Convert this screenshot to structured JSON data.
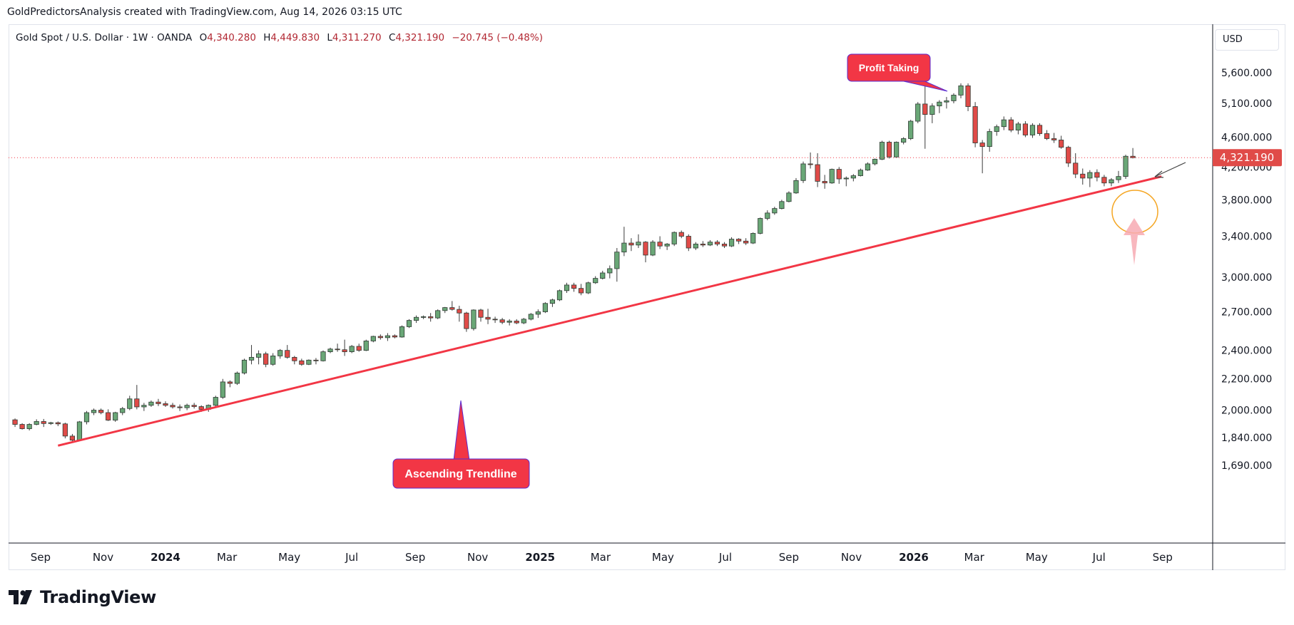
{
  "header": {
    "caption": "GoldPredictorsAnalysis created with TradingView.com, Aug 14, 2026 03:15 UTC"
  },
  "legend": {
    "symbol": "Gold Spot / U.S. Dollar · 1W · OANDA",
    "open_label": "O",
    "open": "4,340.280",
    "high_label": "H",
    "high": "4,449.830",
    "low_label": "L",
    "low": "4,311.270",
    "close_label": "C",
    "close": "4,321.190",
    "change": "−20.745 (−0.48%)"
  },
  "currency": "USD",
  "price_tag": "4,321.190",
  "colors": {
    "up": "#6aa777",
    "down": "#e04b48",
    "trend": "#f23645",
    "annotation": "#f23645",
    "circle": "#f5a623"
  },
  "annotations": {
    "profit_taking": "Profit Taking",
    "ascending_trendline": "Ascending Trendline"
  },
  "brand": {
    "name": "TradingView"
  },
  "chart_data": {
    "type": "candlestick",
    "y_scale": "log",
    "ylim": [
      1640,
      6300
    ],
    "y_ticks": [
      {
        "value": 1690,
        "label": "1,690.000"
      },
      {
        "value": 1840,
        "label": "1,840.000"
      },
      {
        "value": 2000,
        "label": "2,000.000"
      },
      {
        "value": 2200,
        "label": "2,200.000"
      },
      {
        "value": 2400,
        "label": "2,400.000"
      },
      {
        "value": 2700,
        "label": "2,700.000"
      },
      {
        "value": 3000,
        "label": "3,000.000"
      },
      {
        "value": 3400,
        "label": "3,400.000"
      },
      {
        "value": 3800,
        "label": "3,800.000"
      },
      {
        "value": 4200,
        "label": "4,200.000"
      },
      {
        "value": 4600,
        "label": "4,600.000"
      },
      {
        "value": 5100,
        "label": "5,100.000"
      },
      {
        "value": 5600,
        "label": "5,600.000"
      }
    ],
    "x_ticks": [
      {
        "date": "2023-09-01",
        "label": "Sep"
      },
      {
        "date": "2023-11-01",
        "label": "Nov"
      },
      {
        "date": "2024-01-01",
        "label": "2024",
        "bold": true
      },
      {
        "date": "2024-03-01",
        "label": "Mar"
      },
      {
        "date": "2024-05-01",
        "label": "May"
      },
      {
        "date": "2024-07-01",
        "label": "Jul"
      },
      {
        "date": "2024-09-01",
        "label": "Sep"
      },
      {
        "date": "2024-11-01",
        "label": "Nov"
      },
      {
        "date": "2025-01-01",
        "label": "2025",
        "bold": true
      },
      {
        "date": "2025-03-01",
        "label": "Mar"
      },
      {
        "date": "2025-05-01",
        "label": "May"
      },
      {
        "date": "2025-07-01",
        "label": "Jul"
      },
      {
        "date": "2025-09-01",
        "label": "Sep"
      },
      {
        "date": "2025-11-01",
        "label": "Nov"
      },
      {
        "date": "2026-01-01",
        "label": "2026",
        "bold": true
      },
      {
        "date": "2026-03-01",
        "label": "Mar"
      },
      {
        "date": "2026-05-01",
        "label": "May"
      },
      {
        "date": "2026-07-01",
        "label": "Jul"
      },
      {
        "date": "2026-09-01",
        "label": "Sep"
      }
    ],
    "first_week": "2023-08-07",
    "last_price": 4321.19,
    "trendline": {
      "start": {
        "date": "2023-09-18",
        "price": 1795
      },
      "end": {
        "date": "2026-08-31",
        "price": 4080
      }
    },
    "candles": [
      [
        1942,
        1950,
        1900,
        1915
      ],
      [
        1915,
        1922,
        1885,
        1890
      ],
      [
        1890,
        1922,
        1880,
        1915
      ],
      [
        1915,
        1945,
        1910,
        1932
      ],
      [
        1932,
        1947,
        1900,
        1920
      ],
      [
        1920,
        1930,
        1912,
        1925
      ],
      [
        1925,
        1932,
        1905,
        1918
      ],
      [
        1918,
        1925,
        1835,
        1848
      ],
      [
        1848,
        1860,
        1815,
        1825
      ],
      [
        1825,
        1935,
        1820,
        1930
      ],
      [
        1930,
        1995,
        1915,
        1985
      ],
      [
        1985,
        2010,
        1970,
        2000
      ],
      [
        2000,
        2010,
        1975,
        1985
      ],
      [
        1985,
        2005,
        1935,
        1940
      ],
      [
        1940,
        1990,
        1930,
        1985
      ],
      [
        1985,
        2020,
        1970,
        2010
      ],
      [
        2010,
        2090,
        2000,
        2070
      ],
      [
        2070,
        2160,
        2005,
        2020
      ],
      [
        2020,
        2045,
        1995,
        2030
      ],
      [
        2030,
        2060,
        2020,
        2050
      ],
      [
        2050,
        2070,
        2025,
        2040
      ],
      [
        2040,
        2055,
        2020,
        2030
      ],
      [
        2030,
        2045,
        2010,
        2020
      ],
      [
        2020,
        2035,
        1995,
        2015
      ],
      [
        2015,
        2040,
        2000,
        2030
      ],
      [
        2030,
        2045,
        2010,
        2022
      ],
      [
        2022,
        2030,
        1990,
        2005
      ],
      [
        2005,
        2035,
        1990,
        2030
      ],
      [
        2030,
        2090,
        2020,
        2080
      ],
      [
        2080,
        2200,
        2070,
        2180
      ],
      [
        2180,
        2190,
        2145,
        2170
      ],
      [
        2170,
        2250,
        2160,
        2240
      ],
      [
        2240,
        2340,
        2230,
        2330
      ],
      [
        2330,
        2440,
        2300,
        2350
      ],
      [
        2350,
        2400,
        2300,
        2375
      ],
      [
        2375,
        2390,
        2280,
        2300
      ],
      [
        2300,
        2380,
        2290,
        2360
      ],
      [
        2360,
        2410,
        2340,
        2400
      ],
      [
        2400,
        2440,
        2340,
        2350
      ],
      [
        2350,
        2360,
        2300,
        2325
      ],
      [
        2325,
        2340,
        2290,
        2300
      ],
      [
        2300,
        2335,
        2295,
        2330
      ],
      [
        2330,
        2345,
        2300,
        2325
      ],
      [
        2325,
        2400,
        2320,
        2390
      ],
      [
        2390,
        2420,
        2380,
        2410
      ],
      [
        2410,
        2450,
        2390,
        2405
      ],
      [
        2405,
        2480,
        2360,
        2390
      ],
      [
        2390,
        2440,
        2380,
        2430
      ],
      [
        2430,
        2450,
        2390,
        2400
      ],
      [
        2400,
        2480,
        2395,
        2470
      ],
      [
        2470,
        2510,
        2460,
        2505
      ],
      [
        2505,
        2520,
        2480,
        2495
      ],
      [
        2495,
        2530,
        2470,
        2510
      ],
      [
        2510,
        2520,
        2490,
        2500
      ],
      [
        2500,
        2590,
        2495,
        2580
      ],
      [
        2580,
        2640,
        2570,
        2630
      ],
      [
        2630,
        2670,
        2610,
        2655
      ],
      [
        2655,
        2670,
        2640,
        2660
      ],
      [
        2660,
        2690,
        2620,
        2650
      ],
      [
        2650,
        2720,
        2640,
        2710
      ],
      [
        2710,
        2740,
        2690,
        2735
      ],
      [
        2735,
        2790,
        2710,
        2720
      ],
      [
        2720,
        2750,
        2620,
        2690
      ],
      [
        2690,
        2700,
        2540,
        2565
      ],
      [
        2565,
        2720,
        2550,
        2715
      ],
      [
        2715,
        2725,
        2620,
        2655
      ],
      [
        2655,
        2725,
        2600,
        2640
      ],
      [
        2640,
        2660,
        2610,
        2635
      ],
      [
        2635,
        2650,
        2600,
        2615
      ],
      [
        2615,
        2640,
        2590,
        2625
      ],
      [
        2625,
        2640,
        2600,
        2610
      ],
      [
        2610,
        2650,
        2600,
        2640
      ],
      [
        2640,
        2690,
        2630,
        2680
      ],
      [
        2680,
        2720,
        2650,
        2700
      ],
      [
        2700,
        2780,
        2690,
        2770
      ],
      [
        2770,
        2810,
        2740,
        2800
      ],
      [
        2800,
        2890,
        2790,
        2880
      ],
      [
        2880,
        2950,
        2860,
        2930
      ],
      [
        2930,
        2950,
        2870,
        2900
      ],
      [
        2900,
        2940,
        2840,
        2860
      ],
      [
        2860,
        2960,
        2850,
        2950
      ],
      [
        2950,
        3010,
        2940,
        2990
      ],
      [
        2990,
        3060,
        2980,
        3040
      ],
      [
        3040,
        3110,
        2990,
        3080
      ],
      [
        3080,
        3280,
        2960,
        3240
      ],
      [
        3240,
        3500,
        3200,
        3330
      ],
      [
        3330,
        3380,
        3250,
        3310
      ],
      [
        3310,
        3420,
        3280,
        3340
      ],
      [
        3340,
        3350,
        3140,
        3210
      ],
      [
        3210,
        3360,
        3200,
        3340
      ],
      [
        3340,
        3400,
        3270,
        3300
      ],
      [
        3300,
        3330,
        3260,
        3320
      ],
      [
        3320,
        3450,
        3300,
        3440
      ],
      [
        3440,
        3460,
        3380,
        3400
      ],
      [
        3400,
        3420,
        3250,
        3280
      ],
      [
        3280,
        3340,
        3260,
        3320
      ],
      [
        3320,
        3350,
        3290,
        3310
      ],
      [
        3310,
        3360,
        3300,
        3340
      ],
      [
        3340,
        3360,
        3300,
        3320
      ],
      [
        3320,
        3340,
        3280,
        3300
      ],
      [
        3300,
        3390,
        3290,
        3370
      ],
      [
        3370,
        3380,
        3320,
        3350
      ],
      [
        3350,
        3380,
        3310,
        3330
      ],
      [
        3330,
        3440,
        3320,
        3430
      ],
      [
        3430,
        3600,
        3420,
        3590
      ],
      [
        3590,
        3680,
        3570,
        3650
      ],
      [
        3650,
        3720,
        3630,
        3700
      ],
      [
        3700,
        3800,
        3690,
        3780
      ],
      [
        3780,
        3900,
        3770,
        3880
      ],
      [
        3880,
        4060,
        3870,
        4030
      ],
      [
        4030,
        4270,
        4000,
        4240
      ],
      [
        4240,
        4390,
        4180,
        4230
      ],
      [
        4230,
        4380,
        3950,
        4020
      ],
      [
        4020,
        4100,
        3930,
        4000
      ],
      [
        4000,
        4180,
        3990,
        4170
      ],
      [
        4170,
        4200,
        3990,
        4050
      ],
      [
        4050,
        4080,
        3960,
        4060
      ],
      [
        4060,
        4110,
        4020,
        4090
      ],
      [
        4090,
        4180,
        4080,
        4160
      ],
      [
        4160,
        4260,
        4150,
        4240
      ],
      [
        4240,
        4310,
        4220,
        4300
      ],
      [
        4300,
        4550,
        4290,
        4530
      ],
      [
        4530,
        4550,
        4310,
        4330
      ],
      [
        4330,
        4540,
        4320,
        4530
      ],
      [
        4530,
        4600,
        4500,
        4580
      ],
      [
        4580,
        4850,
        4560,
        4830
      ],
      [
        4830,
        5120,
        4800,
        5090
      ],
      [
        5090,
        5590,
        4440,
        4930
      ],
      [
        4930,
        5100,
        4800,
        5060
      ],
      [
        5060,
        5150,
        4950,
        5120
      ],
      [
        5120,
        5200,
        5020,
        5140
      ],
      [
        5140,
        5260,
        5100,
        5230
      ],
      [
        5230,
        5420,
        5180,
        5380
      ],
      [
        5380,
        5420,
        4980,
        5050
      ],
      [
        5050,
        5120,
        4460,
        4520
      ],
      [
        4520,
        4560,
        4120,
        4470
      ],
      [
        4470,
        4720,
        4400,
        4680
      ],
      [
        4680,
        4780,
        4620,
        4750
      ],
      [
        4750,
        4900,
        4700,
        4850
      ],
      [
        4850,
        4890,
        4670,
        4700
      ],
      [
        4700,
        4820,
        4640,
        4790
      ],
      [
        4790,
        4830,
        4600,
        4630
      ],
      [
        4630,
        4800,
        4590,
        4770
      ],
      [
        4770,
        4800,
        4620,
        4650
      ],
      [
        4650,
        4700,
        4560,
        4580
      ],
      [
        4580,
        4660,
        4520,
        4560
      ],
      [
        4560,
        4620,
        4440,
        4460
      ],
      [
        4460,
        4480,
        4200,
        4250
      ],
      [
        4250,
        4380,
        4060,
        4110
      ],
      [
        4110,
        4180,
        3980,
        4060
      ],
      [
        4060,
        4160,
        3950,
        4130
      ],
      [
        4130,
        4170,
        4020,
        4070
      ],
      [
        4070,
        4100,
        3960,
        4000
      ],
      [
        4000,
        4060,
        3960,
        4040
      ],
      [
        4040,
        4150,
        4000,
        4080
      ],
      [
        4080,
        4360,
        4050,
        4340
      ],
      [
        4340,
        4450,
        4311,
        4321
      ]
    ]
  }
}
